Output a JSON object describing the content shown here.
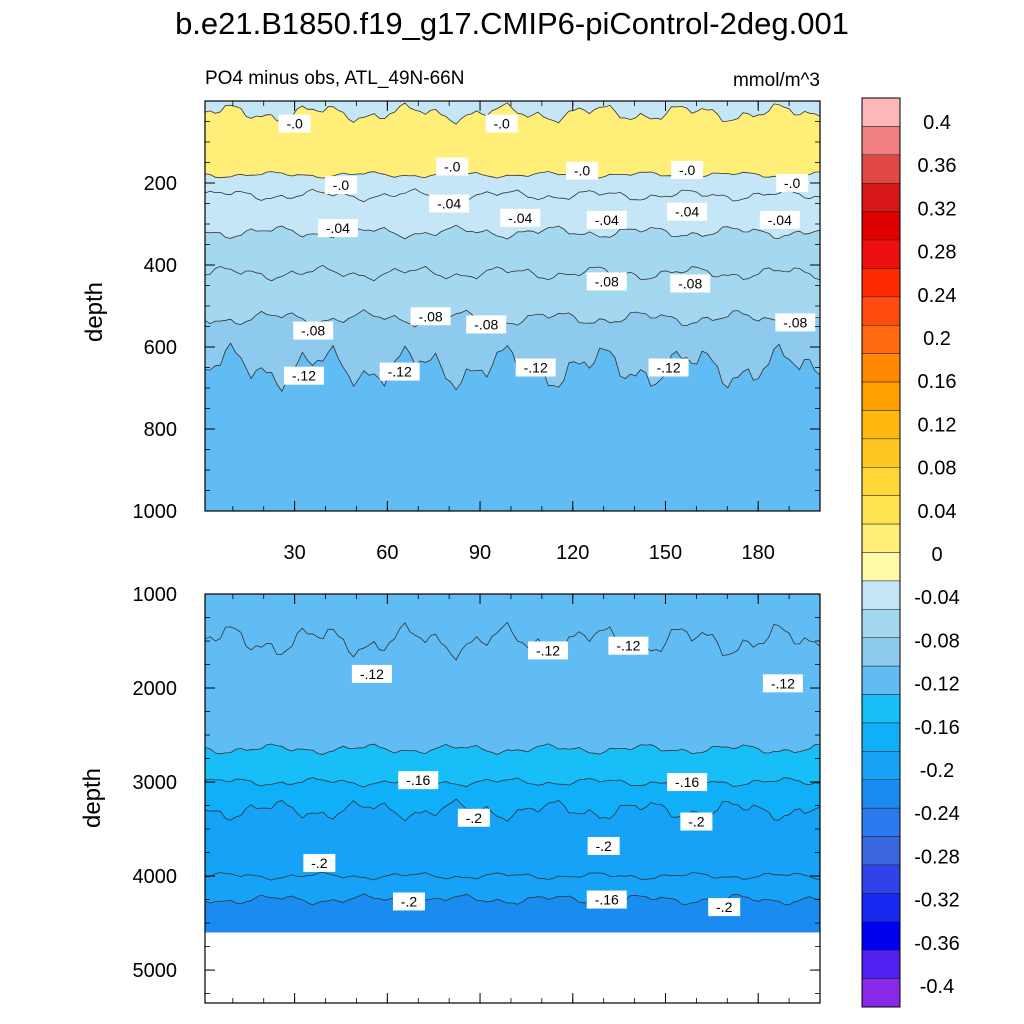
{
  "title": "b.e21.B1850.f19_g17.CMIP6-piControl-2deg.001",
  "chart_data": [
    {
      "type": "contour",
      "subtitle_left": "PO4 minus obs, ATL_49N-66N",
      "subtitle_right": "mmol/m^3",
      "ylabel": "depth",
      "xlim": [
        1,
        200
      ],
      "ylim": [
        1000,
        0
      ],
      "x_ticks": [
        "30",
        "60",
        "90",
        "120",
        "150",
        "180"
      ],
      "y_ticks": [
        "200",
        "400",
        "600",
        "800",
        "1000"
      ],
      "bands": [
        {
          "top": 0,
          "bottom": 30,
          "value": -0.03
        },
        {
          "top": 30,
          "bottom": 180,
          "value": 0.02
        },
        {
          "top": 180,
          "bottom": 230,
          "value": -0.03
        },
        {
          "top": 230,
          "bottom": 320,
          "value": -0.04
        },
        {
          "top": 320,
          "bottom": 420,
          "value": -0.06
        },
        {
          "top": 420,
          "bottom": 530,
          "value": -0.08
        },
        {
          "top": 530,
          "bottom": 650,
          "value": -0.1
        },
        {
          "top": 650,
          "bottom": 1000,
          "value": -0.12
        }
      ],
      "contour_labels": [
        {
          "text": "-.0",
          "x": 30,
          "y": 55
        },
        {
          "text": "-.0",
          "x": 97,
          "y": 55
        },
        {
          "text": "-.0",
          "x": 45,
          "y": 205
        },
        {
          "text": "-.0",
          "x": 81,
          "y": 160
        },
        {
          "text": "-.0",
          "x": 123,
          "y": 170
        },
        {
          "text": "-.0",
          "x": 157,
          "y": 168
        },
        {
          "text": "-.0",
          "x": 191,
          "y": 200
        },
        {
          "text": "-.04",
          "x": 80,
          "y": 250
        },
        {
          "text": "-.04",
          "x": 44,
          "y": 310
        },
        {
          "text": "-.04",
          "x": 103,
          "y": 285
        },
        {
          "text": "-.04",
          "x": 131,
          "y": 290
        },
        {
          "text": "-.04",
          "x": 157,
          "y": 270
        },
        {
          "text": "-.04",
          "x": 187,
          "y": 290
        },
        {
          "text": "-.08",
          "x": 131,
          "y": 440
        },
        {
          "text": "-.08",
          "x": 158,
          "y": 445
        },
        {
          "text": "-.08",
          "x": 36,
          "y": 560
        },
        {
          "text": "-.08",
          "x": 74,
          "y": 525
        },
        {
          "text": "-.08",
          "x": 92,
          "y": 545
        },
        {
          "text": "-.08",
          "x": 192,
          "y": 540
        },
        {
          "text": "-.12",
          "x": 33,
          "y": 670
        },
        {
          "text": "-.12",
          "x": 64,
          "y": 660
        },
        {
          "text": "-.12",
          "x": 108,
          "y": 650
        },
        {
          "text": "-.12",
          "x": 151,
          "y": 650
        }
      ]
    },
    {
      "type": "contour",
      "ylabel": "depth",
      "xlim": [
        1,
        200
      ],
      "ylim": [
        5350,
        1000
      ],
      "y_ticks": [
        "1000",
        "2000",
        "3000",
        "4000",
        "5000"
      ],
      "no_data_below": 4600,
      "bands": [
        {
          "top": 1000,
          "bottom": 1500,
          "value": -0.12
        },
        {
          "top": 1500,
          "bottom": 2650,
          "value": -0.12
        },
        {
          "top": 2650,
          "bottom": 3000,
          "value": -0.14
        },
        {
          "top": 3000,
          "bottom": 3300,
          "value": -0.17
        },
        {
          "top": 3300,
          "bottom": 4000,
          "value": -0.2
        },
        {
          "top": 4000,
          "bottom": 4250,
          "value": -0.21
        },
        {
          "top": 4250,
          "bottom": 4600,
          "value": -0.24
        }
      ],
      "contour_labels": [
        {
          "text": "-.12",
          "x": 112,
          "y": 1600
        },
        {
          "text": "-.12",
          "x": 138,
          "y": 1550
        },
        {
          "text": "-.12",
          "x": 55,
          "y": 1850
        },
        {
          "text": "-.12",
          "x": 188,
          "y": 1950
        },
        {
          "text": "-.16",
          "x": 70,
          "y": 2980
        },
        {
          "text": "-.16",
          "x": 157,
          "y": 3000
        },
        {
          "text": "-.2",
          "x": 88,
          "y": 3380
        },
        {
          "text": "-.2",
          "x": 160,
          "y": 3420
        },
        {
          "text": "-.2",
          "x": 130,
          "y": 3680
        },
        {
          "text": "-.2",
          "x": 38,
          "y": 3860
        },
        {
          "text": "-.2",
          "x": 67,
          "y": 4270
        },
        {
          "text": "-.16",
          "x": 131,
          "y": 4250
        },
        {
          "text": "-.2",
          "x": 169,
          "y": 4330
        }
      ]
    }
  ],
  "colorbar": {
    "labels": [
      "0.4",
      "0.36",
      "0.32",
      "0.28",
      "0.24",
      "0.2",
      "0.16",
      "0.12",
      "0.08",
      "0.04",
      "0",
      "-0.04",
      "-0.08",
      "-0.12",
      "-0.16",
      "-0.2",
      "-0.24",
      "-0.28",
      "-0.32",
      "-0.36",
      "-0.4"
    ],
    "colors": [
      "#fcb8b8",
      "#f08080",
      "#e04848",
      "#d81818",
      "#e00000",
      "#ee1010",
      "#ff2a00",
      "#ff4a10",
      "#ff6a10",
      "#ff8800",
      "#ffa000",
      "#ffb810",
      "#ffc820",
      "#ffd838",
      "#ffe450",
      "#ffee78",
      "#fffaa8",
      "#c4e6f6",
      "#a4d8f0",
      "#8ecaee",
      "#60bcf2",
      "#18bef8",
      "#0fb0f8",
      "#16a2f6",
      "#1a8cf0",
      "#2b7af0",
      "#3a66e0",
      "#2e44e8",
      "#1828f0",
      "#0000f0",
      "#5020f0",
      "#8a28e8"
    ]
  }
}
